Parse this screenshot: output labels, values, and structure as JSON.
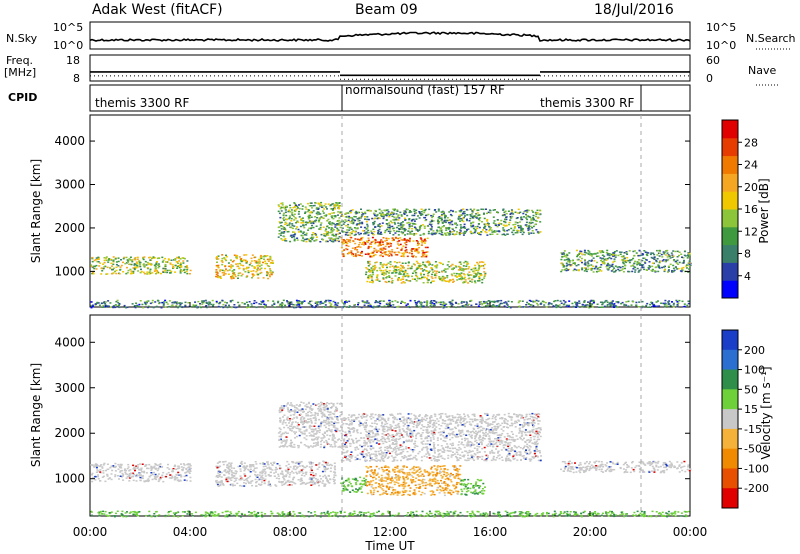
{
  "header": {
    "station": "Adak West (fitACF)",
    "beam": "Beam 09",
    "date": "18/Jul/2016"
  },
  "top_panels": {
    "nsky_label": "N.Sky",
    "nsearch_label": "N.Search",
    "nsky_ticks": [
      "10^5",
      "10^0"
    ],
    "nsearch_ticks": [
      "10^5",
      "10^0"
    ],
    "freq_label_1": "Freq.",
    "freq_label_2": "[MHz]",
    "freq_ticks": [
      "18",
      "8"
    ],
    "nave_label": "Nave",
    "nave_ticks": [
      "60",
      "0"
    ],
    "cpid_label": "CPID",
    "cpid_segments": [
      {
        "label": "themis 3300 RF",
        "start": 0,
        "end": 10
      },
      {
        "label": "normalsound (fast) 157 RF",
        "start": 10,
        "end": 18
      },
      {
        "label": "themis 3300 RF",
        "start": 18,
        "end": 24
      }
    ],
    "freq_segments": [
      {
        "start": 0,
        "end": 10,
        "mhz": 11.5
      },
      {
        "start": 10,
        "end": 18,
        "mhz": 10.2
      },
      {
        "start": 18,
        "end": 24,
        "mhz": 11.5
      }
    ]
  },
  "chart_data": [
    {
      "type": "heatmap",
      "name": "power",
      "ylabel": "Slant Range [km]",
      "xlabel": "Time UT",
      "x_ticks": [
        "00:00",
        "04:00",
        "08:00",
        "12:00",
        "16:00",
        "20:00",
        "00:00"
      ],
      "x_range_hours": [
        0,
        24
      ],
      "y_ticks": [
        1000,
        2000,
        3000,
        4000
      ],
      "ylim_km": [
        180,
        4600
      ],
      "colorbar": {
        "label": "Power [dB]",
        "ticks": [
          4,
          8,
          12,
          16,
          20,
          24,
          28
        ],
        "range": [
          0,
          30
        ],
        "colors": [
          "#0000ff",
          "#2b3fa8",
          "#3a7f6a",
          "#3f9a3f",
          "#8cc43a",
          "#f0c800",
          "#f5a623",
          "#f07a00",
          "#e63c00",
          "#e00000"
        ]
      },
      "regions": [
        {
          "t": [
            0.0,
            4.0
          ],
          "km": [
            950,
            1350
          ],
          "db": 14
        },
        {
          "t": [
            5.0,
            7.3
          ],
          "km": [
            850,
            1400
          ],
          "db": 17
        },
        {
          "t": [
            7.5,
            10.0
          ],
          "km": [
            1700,
            2600
          ],
          "db": 11
        },
        {
          "t": [
            10.0,
            18.0
          ],
          "km": [
            1850,
            2450
          ],
          "db": 10
        },
        {
          "t": [
            10.0,
            13.5
          ],
          "km": [
            1350,
            1800
          ],
          "db": 22
        },
        {
          "t": [
            11.0,
            15.8
          ],
          "km": [
            750,
            1250
          ],
          "db": 15
        },
        {
          "t": [
            18.8,
            24.0
          ],
          "km": [
            1000,
            1500
          ],
          "db": 10
        },
        {
          "t": [
            0.0,
            24.0
          ],
          "km": [
            180,
            350
          ],
          "db": 8
        }
      ]
    },
    {
      "type": "heatmap",
      "name": "velocity",
      "ylabel": "Slant Range [km]",
      "xlabel": "Time UT",
      "x_ticks": [
        "00:00",
        "04:00",
        "08:00",
        "12:00",
        "16:00",
        "20:00",
        "00:00"
      ],
      "x_range_hours": [
        0,
        24
      ],
      "y_ticks": [
        1000,
        2000,
        3000,
        4000
      ],
      "ylim_km": [
        180,
        4600
      ],
      "colorbar": {
        "label": "Velocity [m s⁻¹]",
        "ticks": [
          "200",
          "100",
          "50",
          "15",
          "-15",
          "-50",
          "-100",
          "-200"
        ],
        "colors": [
          "#1a3ec8",
          "#2b6fd0",
          "#2f8f4a",
          "#6fd13a",
          "#c8c8c8",
          "#f5b23a",
          "#f08a00",
          "#e85000",
          "#e00000"
        ]
      },
      "regions": [
        {
          "t": [
            0.0,
            4.0
          ],
          "km": [
            950,
            1350
          ],
          "ms": 0
        },
        {
          "t": [
            5.0,
            9.8
          ],
          "km": [
            850,
            1400
          ],
          "ms": 0
        },
        {
          "t": [
            7.5,
            10.0
          ],
          "km": [
            1700,
            2700
          ],
          "ms": 0
        },
        {
          "t": [
            10.0,
            18.0
          ],
          "km": [
            1400,
            2450
          ],
          "ms": 0
        },
        {
          "t": [
            10.0,
            11.0
          ],
          "km": [
            700,
            1050
          ],
          "ms": 40
        },
        {
          "t": [
            11.0,
            14.8
          ],
          "km": [
            650,
            1300
          ],
          "ms": -60
        },
        {
          "t": [
            14.8,
            15.8
          ],
          "km": [
            650,
            1000
          ],
          "ms": 30
        },
        {
          "t": [
            18.8,
            24.0
          ],
          "km": [
            1150,
            1400
          ],
          "ms": 0
        },
        {
          "t": [
            0.0,
            24.0
          ],
          "km": [
            180,
            300
          ],
          "ms": 25
        }
      ]
    }
  ]
}
